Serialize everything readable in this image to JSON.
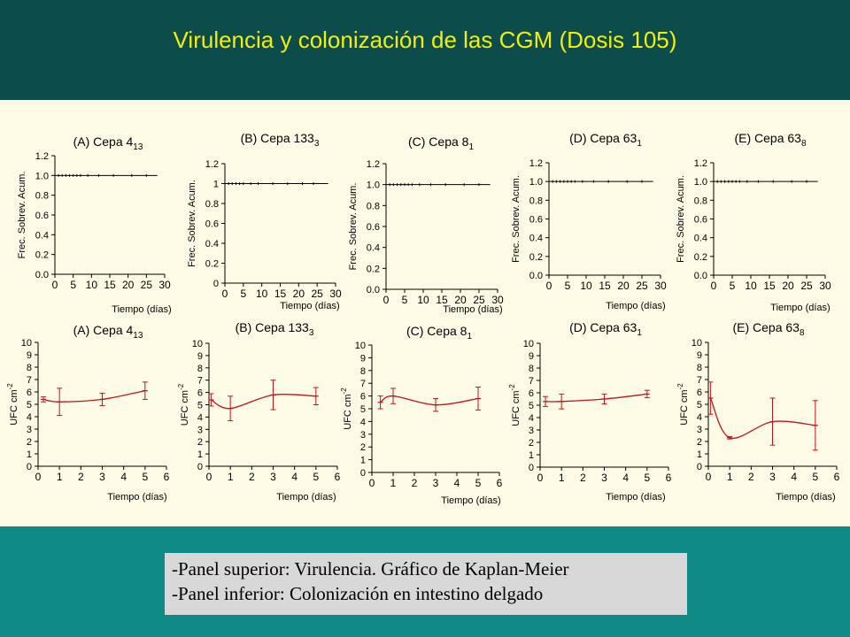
{
  "title": "Virulencia y colonización de las CGM (Dosis 105)",
  "notes": [
    "-Panel superior: Virulencia. Gráfico de Kaplan-Meier",
    "-Panel inferior: Colonización en intestino delgado"
  ],
  "colors": {
    "header": "#0c4c4a",
    "title": "#f1f00a",
    "panel": "#fdfbe6",
    "background": "#0f8a86",
    "series_line": "#c0141c"
  },
  "chart_data": [
    {
      "type": "line",
      "title": "(A) Cepa 4",
      "title_sub": "13",
      "ylabel": "Frec. Sobrev. Acum.",
      "xlabel": "Tiempo (días)",
      "ylim": [
        0,
        1.2
      ],
      "xlim": [
        0,
        30
      ],
      "yticks": [
        "0.0",
        "0.2",
        "0.4",
        "0.6",
        "0.8",
        "1.0",
        "1.2"
      ],
      "xticks": [
        "0",
        "5",
        "10",
        "15",
        "20",
        "25",
        "30"
      ],
      "x": [
        0,
        28
      ],
      "y": [
        1.0,
        1.0
      ],
      "markers": [
        1,
        2,
        3,
        4,
        5,
        6,
        7,
        9,
        12,
        16,
        21,
        25
      ]
    },
    {
      "type": "line",
      "title": "(B) Cepa 133",
      "title_sub": "3",
      "ylabel": "Frec. Sobrev. Acum.",
      "xlabel": "Tiempo (días)",
      "ylim": [
        0,
        1.2
      ],
      "xlim": [
        0,
        30
      ],
      "yticks": [
        "0",
        "0.2",
        "0.4",
        "0.6",
        "0.8",
        "1",
        "1.2"
      ],
      "xticks": [
        "0",
        "5",
        "10",
        "15",
        "20",
        "25",
        "30"
      ],
      "x": [
        0,
        28
      ],
      "y": [
        1.0,
        1.0
      ],
      "markers": [
        1,
        2,
        3,
        4,
        5,
        7,
        9,
        13,
        17,
        21,
        24
      ]
    },
    {
      "type": "line",
      "title": "(C) Cepa 8",
      "title_sub": "1",
      "ylabel": "Frec. Sobrev. Acum.",
      "xlabel": "Tiempo (días)",
      "ylim": [
        0,
        1.2
      ],
      "xlim": [
        0,
        30
      ],
      "yticks": [
        "0.0",
        "0.2",
        "0.4",
        "0.6",
        "0.8",
        "1.0",
        "1.2"
      ],
      "xticks": [
        "0",
        "5",
        "10",
        "15",
        "20",
        "25",
        "30"
      ],
      "x": [
        0,
        28
      ],
      "y": [
        1.0,
        1.0
      ],
      "markers": [
        1,
        2,
        3,
        4,
        5,
        6,
        7,
        9,
        12,
        16,
        21,
        25
      ]
    },
    {
      "type": "line",
      "title": "(D) Cepa 63",
      "title_sub": "1",
      "ylabel": "Frec. Sobrev. Acum.",
      "xlabel": "Tiempo (días)",
      "ylim": [
        0,
        1.2
      ],
      "xlim": [
        0,
        30
      ],
      "yticks": [
        "0.0",
        "0.2",
        "0.4",
        "0.6",
        "0.8",
        "1.0",
        "1.2"
      ],
      "xticks": [
        "0",
        "5",
        "10",
        "15",
        "20",
        "25",
        "30"
      ],
      "x": [
        0,
        28
      ],
      "y": [
        1.0,
        1.0
      ],
      "markers": [
        1,
        2,
        3,
        4,
        5,
        6,
        7,
        9,
        12,
        16,
        21,
        25
      ]
    },
    {
      "type": "line",
      "title": "(E) Cepa 63",
      "title_sub": "8",
      "ylabel": "Frec. Sobrev. Acum.",
      "xlabel": "Tiempo (días)",
      "ylim": [
        0,
        1.2
      ],
      "xlim": [
        0,
        30
      ],
      "yticks": [
        "0.0",
        "0.2",
        "0.4",
        "0.6",
        "0.8",
        "1.0",
        "1.2"
      ],
      "xticks": [
        "0",
        "5",
        "10",
        "15",
        "20",
        "25",
        "30"
      ],
      "x": [
        0,
        28
      ],
      "y": [
        1.0,
        1.0
      ],
      "markers": [
        1,
        2,
        3,
        4,
        5,
        6,
        7,
        9,
        12,
        16,
        21,
        25
      ]
    },
    {
      "type": "line",
      "title": "(A) Cepa 4",
      "title_sub": "13",
      "ylabel": "UFC cm",
      "ylabel_sup": "-2",
      "xlabel": "Tiempo (días)",
      "ylim": [
        0,
        10
      ],
      "xlim": [
        0,
        6
      ],
      "yticks": [
        "0",
        "1",
        "2",
        "3",
        "4",
        "5",
        "6",
        "7",
        "8",
        "9",
        "10"
      ],
      "xticks": [
        "0",
        "1",
        "2",
        "3",
        "4",
        "5",
        "6"
      ],
      "x": [
        0.25,
        1,
        3,
        5
      ],
      "y": [
        5.4,
        5.2,
        5.4,
        6.1
      ],
      "err": [
        0.2,
        1.1,
        0.5,
        0.7
      ]
    },
    {
      "type": "line",
      "title": "(B) Cepa 133",
      "title_sub": "3",
      "ylabel": "UFC cm",
      "ylabel_sup": "-2",
      "xlabel": "Tiempo (días)",
      "ylim": [
        0,
        10
      ],
      "xlim": [
        0,
        6
      ],
      "yticks": [
        "0",
        "1",
        "2",
        "3",
        "4",
        "5",
        "6",
        "7",
        "8",
        "9",
        "10"
      ],
      "xticks": [
        "0",
        "1",
        "2",
        "3",
        "4",
        "5",
        "6"
      ],
      "x": [
        0.1,
        1,
        3,
        5
      ],
      "y": [
        5.4,
        4.7,
        5.8,
        5.7
      ],
      "err": [
        0.5,
        1.0,
        1.2,
        0.7
      ]
    },
    {
      "type": "line",
      "title": "(C) Cepa 8",
      "title_sub": "1",
      "ylabel": "UFC cm",
      "ylabel_sup": "-2",
      "xlabel": "Tiempo (días)",
      "ylim": [
        0,
        10
      ],
      "xlim": [
        0,
        6
      ],
      "yticks": [
        "0",
        "1",
        "2",
        "3",
        "4",
        "5",
        "6",
        "7",
        "8",
        "9",
        "10"
      ],
      "xticks": [
        "0",
        "1",
        "2",
        "3",
        "4",
        "5",
        "6"
      ],
      "x": [
        0.4,
        1,
        3,
        5
      ],
      "y": [
        5.5,
        6.0,
        5.3,
        5.8
      ],
      "err": [
        0.5,
        0.6,
        0.5,
        0.9
      ]
    },
    {
      "type": "line",
      "title": "(D) Cepa 63",
      "title_sub": "1",
      "ylabel": "UFC cm",
      "ylabel_sup": "-2",
      "xlabel": "Tiempo (días)",
      "ylim": [
        0,
        10
      ],
      "xlim": [
        0,
        6
      ],
      "yticks": [
        "0",
        "1",
        "2",
        "3",
        "4",
        "5",
        "6",
        "7",
        "8",
        "9",
        "10"
      ],
      "xticks": [
        "0",
        "1",
        "2",
        "3",
        "4",
        "5",
        "6"
      ],
      "x": [
        0.25,
        1,
        3,
        5
      ],
      "y": [
        5.3,
        5.3,
        5.5,
        5.9
      ],
      "err": [
        0.4,
        0.6,
        0.4,
        0.3
      ]
    },
    {
      "type": "line",
      "title": "(E) Cepa 63",
      "title_sub": "8",
      "ylabel": "UFC cm",
      "ylabel_sup": "-2",
      "xlabel": "Tiempo (días)",
      "ylim": [
        0,
        10
      ],
      "xlim": [
        0,
        6
      ],
      "yticks": [
        "0",
        "1",
        "2",
        "3",
        "4",
        "5",
        "6",
        "7",
        "8",
        "9",
        "10"
      ],
      "xticks": [
        "0",
        "1",
        "2",
        "3",
        "4",
        "5",
        "6"
      ],
      "x": [
        0.1,
        1,
        3,
        5
      ],
      "y": [
        5.5,
        2.3,
        3.6,
        3.3
      ],
      "err": [
        1.3,
        0.1,
        1.9,
        2.0
      ]
    }
  ]
}
